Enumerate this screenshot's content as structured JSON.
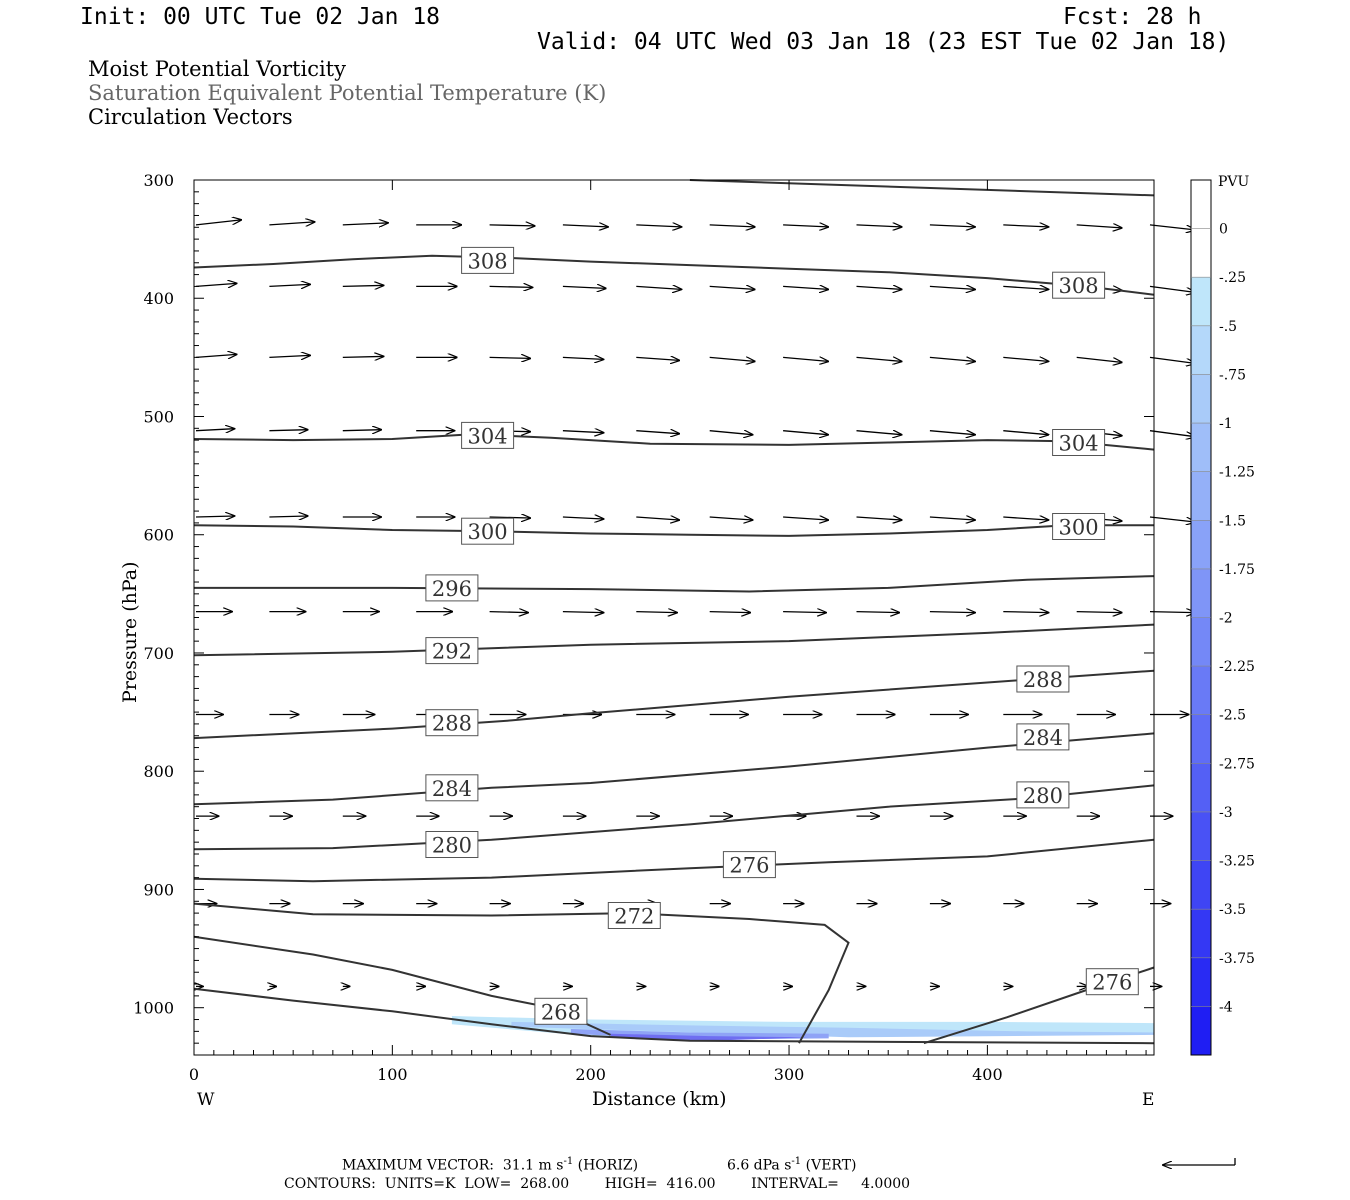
{
  "header": {
    "init": "Init: 00 UTC Tue 02 Jan 18",
    "fcst": "Fcst:   28 h",
    "valid": "Valid: 04 UTC Wed 03 Jan 18 (23 EST Tue 02 Jan 18)"
  },
  "fields": {
    "line1": "Moist Potential Vorticity",
    "line2": "Saturation Equivalent Potential Temperature (K)",
    "line3": "Circulation Vectors"
  },
  "footer": {
    "max_vector_label": "MAXIMUM VECTOR:",
    "max_horiz": "31.1 m s",
    "horiz_unit": "(HORIZ)",
    "max_vert": "6.6 dPa s",
    "vert_unit": "(VERT)",
    "exponent": "-1",
    "contours": "CONTOURS:  UNITS=K  LOW=  268.00        HIGH=  416.00        INTERVAL=     4.0000"
  },
  "chart_data": {
    "type": "cross-section",
    "xlabel": "Distance (km)",
    "ylabel": "Pressure (hPa)",
    "xlim": [
      0,
      484
    ],
    "ylim": [
      300,
      1040
    ],
    "x_ticks": [
      0,
      100,
      200,
      300,
      400
    ],
    "y_ticks": [
      300,
      400,
      500,
      600,
      700,
      800,
      900,
      1000
    ],
    "x_end_labels": {
      "left": "W",
      "right": "E"
    },
    "colorbar": {
      "unit": "PVU",
      "labels": [
        "0",
        "-.25",
        "-.5",
        "-.75",
        "-1",
        "-1.25",
        "-1.5",
        "-1.75",
        "-2",
        "-2.25",
        "-2.5",
        "-2.75",
        "-3",
        "-3.25",
        "-3.5",
        "-3.75",
        "-4"
      ],
      "colors": [
        "#ffffff",
        "#ffffff",
        "#bfe6fa",
        "#b4d8fa",
        "#a9cbf9",
        "#9fbef9",
        "#94b0f8",
        "#89a2f8",
        "#7f95f7",
        "#7488f7",
        "#697af6",
        "#5f6df6",
        "#5460f5",
        "#4952f5",
        "#3f45f4",
        "#3438f4",
        "#292bf3",
        "#1f1ef3"
      ]
    },
    "contours": [
      {
        "points": [
          [
            250,
            300
          ],
          [
            484,
            313
          ]
        ]
      },
      {
        "points": [
          [
            0,
            374
          ],
          [
            40,
            371
          ],
          [
            80,
            367
          ],
          [
            120,
            364
          ],
          [
            160,
            366
          ],
          [
            200,
            369
          ],
          [
            250,
            372
          ],
          [
            300,
            375
          ],
          [
            350,
            378
          ],
          [
            400,
            383
          ],
          [
            450,
            390
          ],
          [
            484,
            397
          ]
        ],
        "label": "308",
        "label_at": [
          [
            148,
            368
          ],
          [
            446,
            389
          ]
        ]
      },
      {
        "points": [
          [
            0,
            519
          ],
          [
            50,
            520
          ],
          [
            100,
            519
          ],
          [
            140,
            515
          ],
          [
            180,
            518
          ],
          [
            230,
            523
          ],
          [
            300,
            524
          ],
          [
            350,
            522
          ],
          [
            400,
            520
          ],
          [
            440,
            521
          ],
          [
            484,
            528
          ]
        ],
        "label": "304",
        "label_at": [
          [
            148,
            516
          ],
          [
            446,
            522
          ]
        ]
      },
      {
        "points": [
          [
            0,
            592
          ],
          [
            50,
            593
          ],
          [
            100,
            596
          ],
          [
            150,
            597
          ],
          [
            200,
            599
          ],
          [
            250,
            600
          ],
          [
            300,
            601
          ],
          [
            350,
            599
          ],
          [
            400,
            596
          ],
          [
            440,
            592
          ],
          [
            484,
            592
          ]
        ],
        "label": "300",
        "label_at": [
          [
            148,
            597
          ],
          [
            446,
            593
          ]
        ]
      },
      {
        "points": [
          [
            0,
            645
          ],
          [
            100,
            645
          ],
          [
            200,
            646
          ],
          [
            280,
            648
          ],
          [
            350,
            645
          ],
          [
            420,
            638
          ],
          [
            484,
            635
          ]
        ],
        "label": "296",
        "label_at": [
          [
            130,
            645
          ]
        ]
      },
      {
        "points": [
          [
            0,
            702
          ],
          [
            100,
            699
          ],
          [
            200,
            693
          ],
          [
            300,
            690
          ],
          [
            400,
            683
          ],
          [
            484,
            676
          ]
        ],
        "label": "292",
        "label_at": [
          [
            130,
            698
          ]
        ]
      },
      {
        "points": [
          [
            0,
            772
          ],
          [
            100,
            764
          ],
          [
            160,
            757
          ],
          [
            200,
            751
          ],
          [
            300,
            737
          ],
          [
            400,
            725
          ],
          [
            484,
            715
          ]
        ],
        "label": "288",
        "label_at": [
          [
            130,
            759
          ],
          [
            428,
            722
          ]
        ]
      },
      {
        "points": [
          [
            0,
            828
          ],
          [
            70,
            824
          ],
          [
            150,
            814
          ],
          [
            200,
            810
          ],
          [
            300,
            796
          ],
          [
            400,
            780
          ],
          [
            484,
            768
          ]
        ],
        "label": "284",
        "label_at": [
          [
            130,
            814
          ],
          [
            428,
            771
          ]
        ]
      },
      {
        "points": [
          [
            0,
            866
          ],
          [
            70,
            865
          ],
          [
            150,
            858
          ],
          [
            250,
            845
          ],
          [
            350,
            830
          ],
          [
            420,
            823
          ],
          [
            484,
            812
          ]
        ],
        "label": "280",
        "label_at": [
          [
            130,
            862
          ],
          [
            428,
            820
          ]
        ]
      },
      {
        "points": [
          [
            0,
            891
          ],
          [
            60,
            893
          ],
          [
            150,
            890
          ],
          [
            250,
            882
          ],
          [
            320,
            877
          ],
          [
            400,
            872
          ],
          [
            484,
            858
          ]
        ],
        "label": "276",
        "label_at": [
          [
            280,
            879
          ]
        ]
      },
      {
        "points": [
          [
            0,
            912
          ],
          [
            60,
            921
          ],
          [
            150,
            922
          ],
          [
            220,
            920
          ],
          [
            280,
            925
          ],
          [
            318,
            930
          ],
          [
            330,
            945
          ],
          [
            320,
            985
          ],
          [
            305,
            1030
          ]
        ],
        "label": "272",
        "label_at": [
          [
            222,
            922
          ]
        ]
      },
      {
        "points": [
          [
            0,
            940
          ],
          [
            60,
            955
          ],
          [
            100,
            968
          ],
          [
            150,
            990
          ],
          [
            180,
            1000
          ],
          [
            210,
            1023
          ]
        ],
        "label": "268",
        "label_at": [
          [
            185,
            1003
          ]
        ]
      },
      {
        "points": [
          [
            0,
            984
          ],
          [
            50,
            994
          ],
          [
            100,
            1003
          ],
          [
            150,
            1014
          ],
          [
            200,
            1024
          ],
          [
            250,
            1028
          ],
          [
            484,
            1030
          ]
        ]
      },
      {
        "points": [
          [
            368,
            1030
          ],
          [
            410,
            1008
          ],
          [
            450,
            985
          ],
          [
            484,
            966
          ]
        ],
        "label": "276",
        "label_at": [
          [
            463,
            978
          ]
        ]
      }
    ],
    "shading": [
      {
        "value": "-0.25",
        "points": [
          [
            130,
            1007
          ],
          [
            200,
            1010
          ],
          [
            300,
            1012
          ],
          [
            400,
            1012
          ],
          [
            484,
            1013
          ],
          [
            484,
            1022
          ],
          [
            430,
            1022
          ],
          [
            400,
            1020
          ],
          [
            300,
            1022
          ],
          [
            200,
            1024
          ],
          [
            130,
            1014
          ]
        ]
      },
      {
        "value": "-0.5",
        "points": [
          [
            160,
            1012
          ],
          [
            250,
            1015
          ],
          [
            330,
            1017
          ],
          [
            420,
            1020
          ],
          [
            484,
            1021
          ],
          [
            484,
            1023
          ],
          [
            330,
            1025
          ],
          [
            160,
            1016
          ]
        ]
      },
      {
        "value": "-1",
        "points": [
          [
            190,
            1018
          ],
          [
            250,
            1021
          ],
          [
            320,
            1022
          ],
          [
            320,
            1026
          ],
          [
            250,
            1027
          ],
          [
            190,
            1022
          ]
        ]
      },
      {
        "value": "-2",
        "points": [
          [
            210,
            1022
          ],
          [
            260,
            1024
          ],
          [
            310,
            1025
          ],
          [
            260,
            1028
          ],
          [
            210,
            1025
          ]
        ]
      }
    ],
    "vector_rows": [
      {
        "p": 338,
        "x": [
          0,
          37,
          74,
          111,
          148,
          185,
          222,
          259,
          296,
          333,
          370,
          407,
          444,
          481
        ],
        "u": [
          1,
          1,
          1,
          1,
          1,
          1,
          1,
          1,
          1,
          1,
          1,
          1,
          1,
          1
        ],
        "w": [
          -5,
          -3,
          -2,
          0,
          1,
          2,
          2,
          2,
          2,
          2,
          2,
          2,
          3,
          5
        ]
      },
      {
        "p": 390,
        "x": [
          0,
          37,
          74,
          111,
          148,
          185,
          222,
          259,
          296,
          333,
          370,
          407,
          444,
          481
        ],
        "u": [
          0.9,
          0.9,
          0.9,
          0.9,
          0.95,
          0.95,
          1,
          1,
          1,
          1,
          1,
          1,
          1,
          1
        ],
        "w": [
          -3,
          -2,
          -1,
          0,
          1,
          2,
          3,
          3,
          3,
          3,
          3,
          3,
          4,
          6
        ]
      },
      {
        "p": 450,
        "x": [
          0,
          37,
          74,
          111,
          148,
          185,
          222,
          259,
          296,
          333,
          370,
          407,
          444,
          481
        ],
        "u": [
          0.9,
          0.9,
          0.9,
          0.9,
          0.9,
          0.9,
          0.95,
          1,
          1,
          1,
          1,
          1,
          1,
          1
        ],
        "w": [
          -3,
          -2,
          -1,
          0,
          1,
          2,
          3,
          4,
          4,
          4,
          4,
          4,
          5,
          6
        ]
      },
      {
        "p": 512,
        "x": [
          0,
          37,
          74,
          111,
          148,
          185,
          222,
          259,
          296,
          333,
          370,
          407,
          444,
          481
        ],
        "u": [
          0.85,
          0.85,
          0.85,
          0.85,
          0.9,
          0.9,
          0.95,
          0.95,
          1,
          1,
          1,
          1,
          1,
          1
        ],
        "w": [
          -2,
          -1,
          -1,
          0,
          1,
          2,
          3,
          4,
          4,
          4,
          4,
          4,
          5,
          6
        ]
      },
      {
        "p": 585,
        "x": [
          0,
          37,
          74,
          111,
          148,
          185,
          222,
          259,
          296,
          333,
          370,
          407,
          444,
          481
        ],
        "u": [
          0.85,
          0.85,
          0.85,
          0.85,
          0.9,
          0.9,
          0.95,
          0.95,
          1,
          1,
          1,
          1,
          1,
          1
        ],
        "w": [
          -1,
          -1,
          0,
          0,
          1,
          2,
          3,
          3,
          3,
          3,
          3,
          3,
          4,
          5
        ]
      },
      {
        "p": 665,
        "x": [
          0,
          37,
          74,
          111,
          148,
          185,
          222,
          259,
          296,
          333,
          370,
          407,
          444,
          481
        ],
        "u": [
          0.8,
          0.8,
          0.8,
          0.8,
          0.85,
          0.9,
          0.9,
          0.9,
          0.95,
          0.95,
          1,
          1,
          1,
          1
        ],
        "w": [
          0,
          0,
          0,
          0,
          1,
          1,
          1,
          1,
          1,
          1,
          1,
          1,
          1,
          1
        ]
      },
      {
        "p": 752,
        "x": [
          0,
          37,
          74,
          111,
          148,
          185,
          222,
          259,
          296,
          333,
          370,
          407,
          444,
          481
        ],
        "u": [
          0.6,
          0.65,
          0.7,
          0.75,
          0.8,
          0.85,
          0.85,
          0.85,
          0.85,
          0.85,
          0.85,
          0.85,
          0.85,
          0.85
        ],
        "w": [
          0,
          0,
          0,
          0,
          0,
          0,
          0,
          0,
          0,
          0,
          0,
          0,
          0,
          0
        ]
      },
      {
        "p": 838,
        "x": [
          0,
          37,
          74,
          111,
          148,
          185,
          222,
          259,
          296,
          333,
          370,
          407,
          444,
          481
        ],
        "u": [
          0.5,
          0.5,
          0.5,
          0.5,
          0.5,
          0.5,
          0.5,
          0.5,
          0.5,
          0.5,
          0.5,
          0.5,
          0.5,
          0.5
        ],
        "w": [
          0,
          0,
          0,
          0,
          0,
          0,
          0,
          0,
          0,
          0,
          0,
          0,
          0,
          0
        ]
      },
      {
        "p": 912,
        "x": [
          0,
          37,
          74,
          111,
          148,
          185,
          222,
          259,
          296,
          333,
          370,
          407,
          444,
          481
        ],
        "u": [
          0.45,
          0.45,
          0.45,
          0.45,
          0.45,
          0.45,
          0.45,
          0.45,
          0.45,
          0.45,
          0.45,
          0.45,
          0.45,
          0.45
        ],
        "w": [
          0,
          0,
          0,
          0,
          0,
          0,
          0,
          0,
          0,
          0,
          0,
          0,
          0,
          0
        ]
      },
      {
        "p": 982,
        "x": [
          0,
          37,
          74,
          111,
          148,
          185,
          222,
          259,
          296,
          333,
          370,
          407,
          444,
          481
        ],
        "u": [
          0.15,
          0.15,
          0.15,
          0.2,
          0.2,
          0.2,
          0.2,
          0.2,
          0.2,
          0.2,
          0.2,
          0.2,
          0.25,
          0.25
        ],
        "w": [
          0,
          0,
          0,
          0,
          0,
          0,
          0,
          0,
          0,
          0,
          0,
          0,
          0,
          0
        ]
      }
    ]
  }
}
